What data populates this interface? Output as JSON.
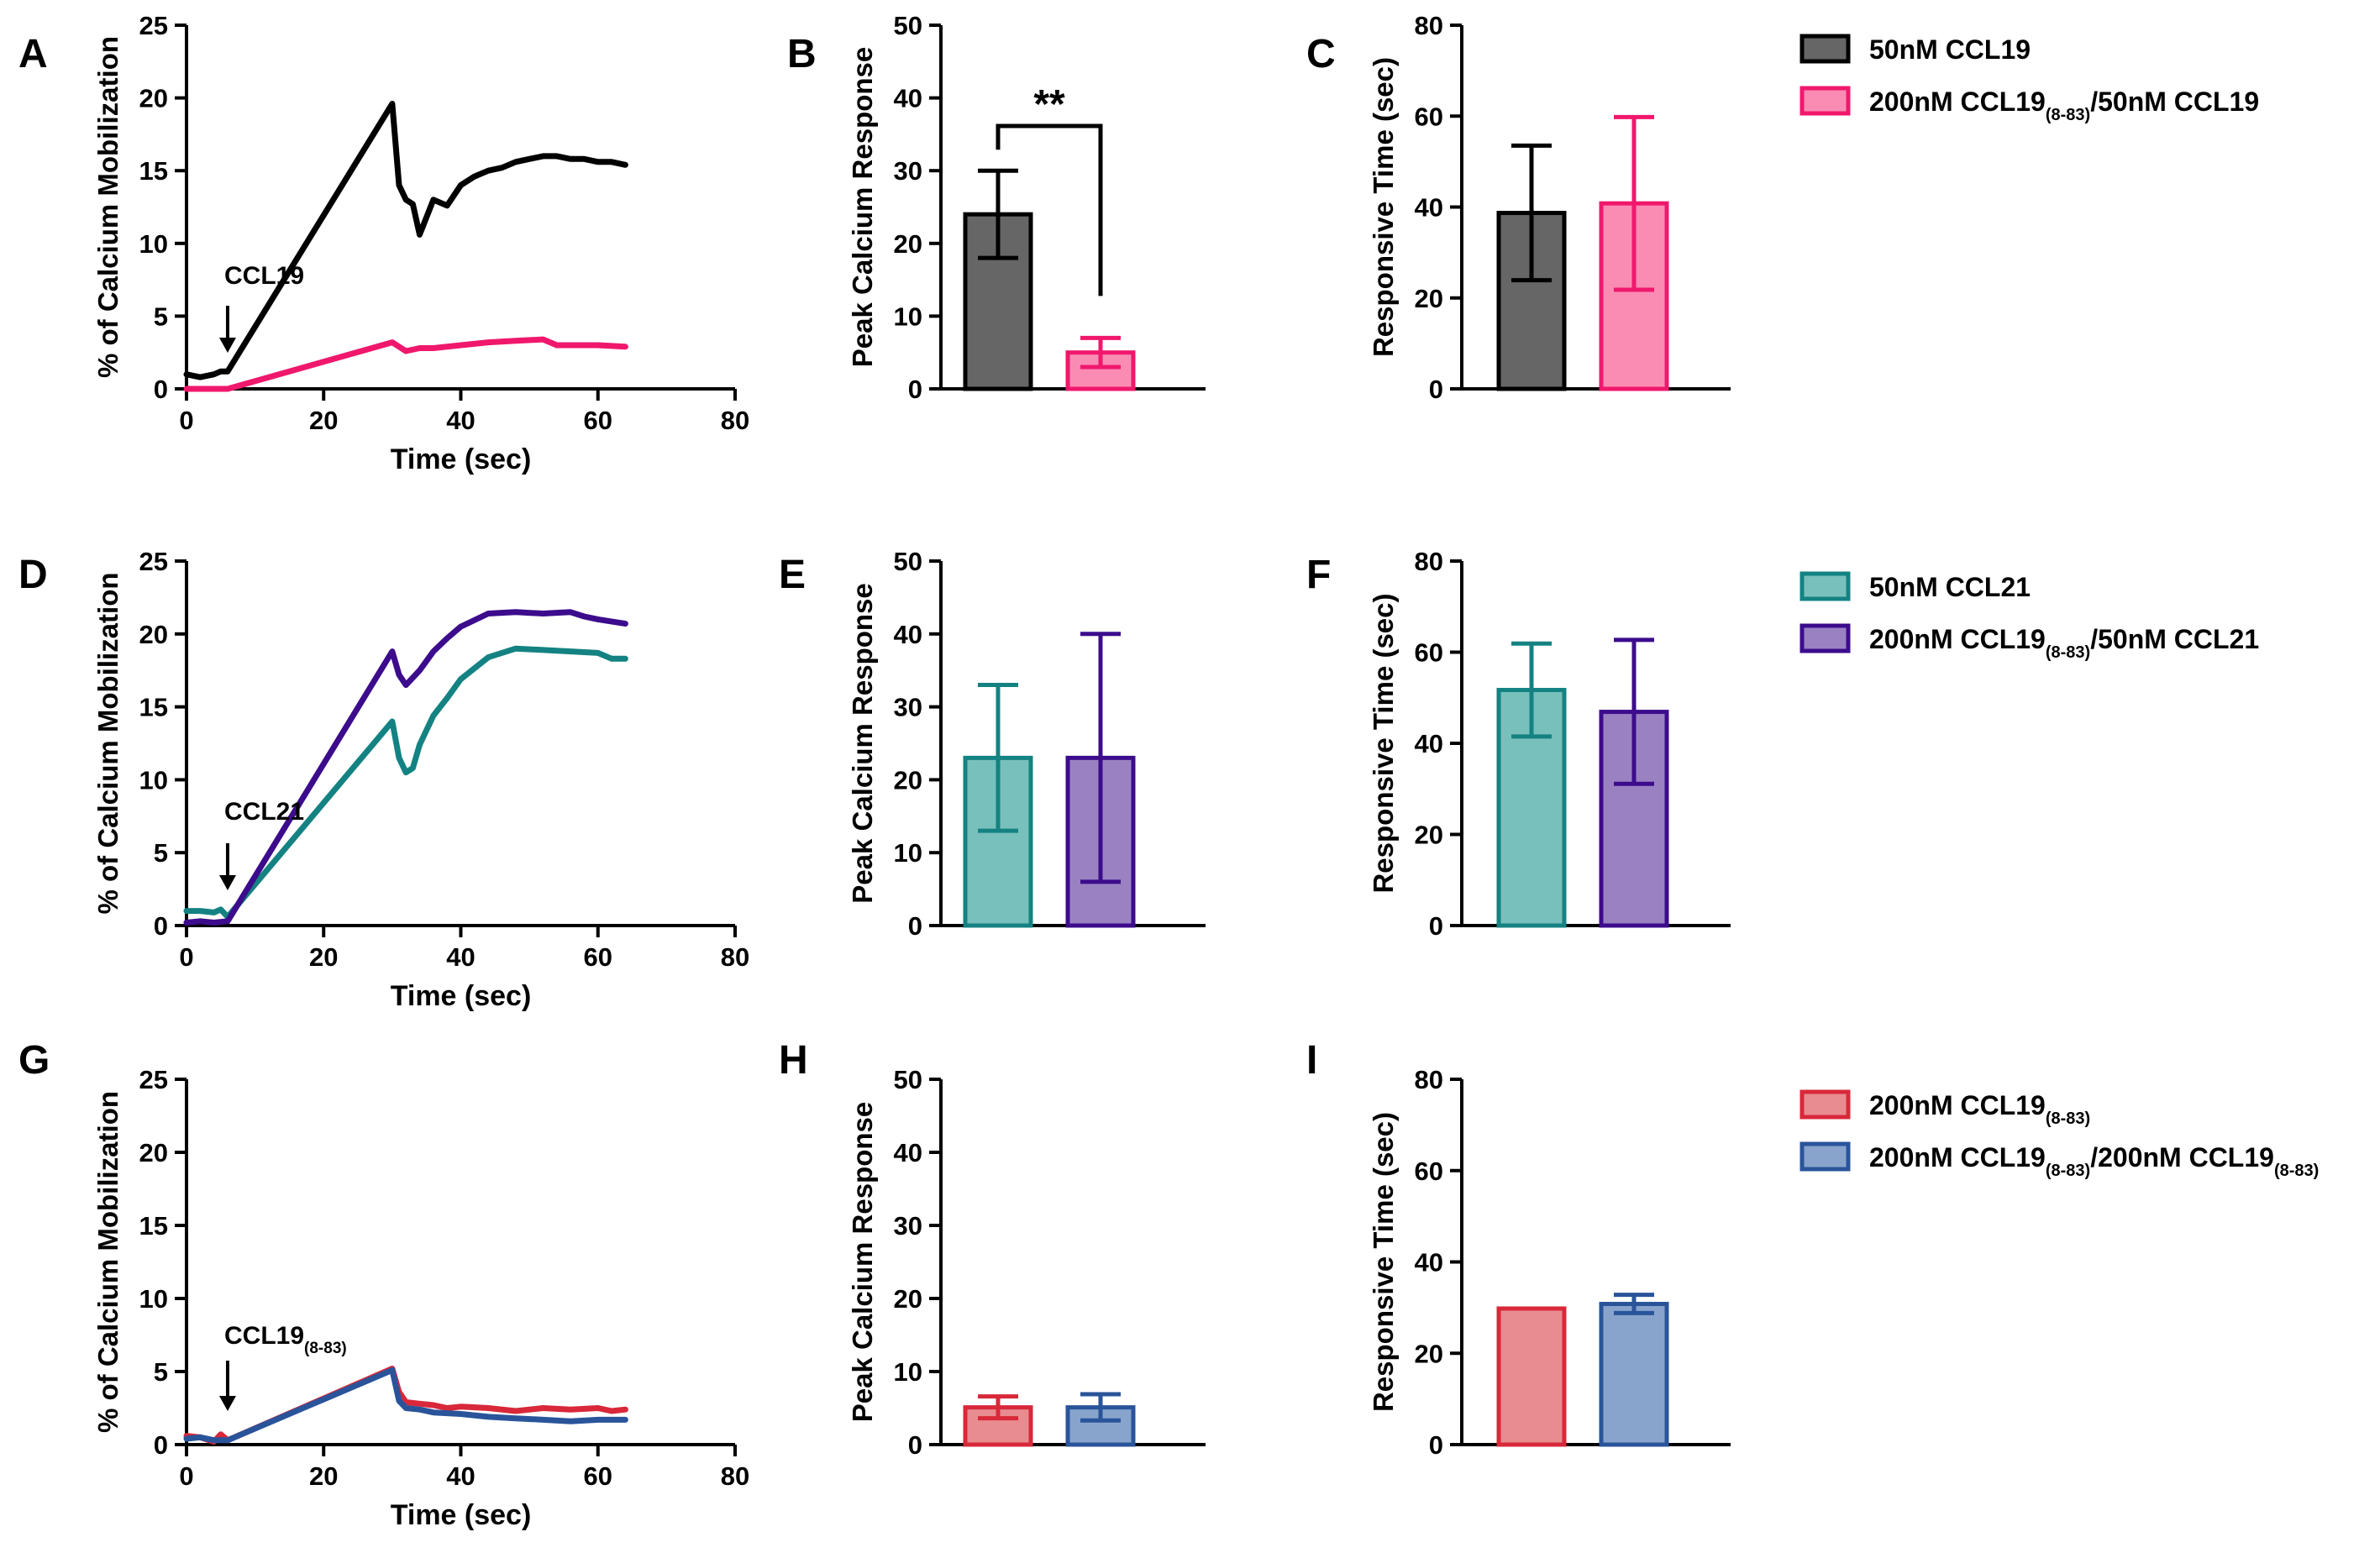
{
  "figure": {
    "colors": {
      "black": "#000000",
      "grey": "#666666",
      "pink_line": "#f0186c",
      "pink_fill": "#fa8cb4",
      "teal_line": "#148282",
      "teal_fill": "#78c0bc",
      "purple_line": "#3c0c8c",
      "purple_fill": "#9a82c2",
      "red_line": "#d8283a",
      "red_fill": "#e88c90",
      "blue_line": "#2a549a",
      "blue_fill": "#88a4cc"
    },
    "legends": [
      {
        "items": [
          {
            "name": "legend-50nm-ccl19",
            "parts": [
              {
                "t": "50nM CCL19",
                "sub": false
              }
            ],
            "fill": "#666666",
            "stroke": "#000000"
          },
          {
            "name": "legend-200nm-ccl19-8-83-50nm-ccl19",
            "parts": [
              {
                "t": "200nM CCL19",
                "sub": false
              },
              {
                "t": "(8-83)",
                "sub": true
              },
              {
                "t": "/50nM CCL19",
                "sub": false
              }
            ],
            "fill": "#fa8cb4",
            "stroke": "#f0186c"
          }
        ]
      },
      {
        "items": [
          {
            "name": "legend-50nm-ccl21",
            "parts": [
              {
                "t": "50nM CCL21",
                "sub": false
              }
            ],
            "fill": "#78c0bc",
            "stroke": "#148282"
          },
          {
            "name": "legend-200nm-ccl19-8-83-50nm-ccl21",
            "parts": [
              {
                "t": "200nM CCL19",
                "sub": false
              },
              {
                "t": "(8-83)",
                "sub": true
              },
              {
                "t": "/50nM CCL21",
                "sub": false
              }
            ],
            "fill": "#9a82c2",
            "stroke": "#3c0c8c"
          }
        ]
      },
      {
        "items": [
          {
            "name": "legend-200nm-ccl19-8-83",
            "parts": [
              {
                "t": "200nM CCL19",
                "sub": false
              },
              {
                "t": "(8-83)",
                "sub": true
              }
            ],
            "fill": "#e88c90",
            "stroke": "#d8283a"
          },
          {
            "name": "legend-200nm-ccl19-8-83-200nm-ccl19-8-83",
            "parts": [
              {
                "t": "200nM CCL19",
                "sub": false
              },
              {
                "t": "(8-83)",
                "sub": true
              },
              {
                "t": "/200nM CCL19",
                "sub": false
              },
              {
                "t": "(8-83)",
                "sub": true
              }
            ],
            "fill": "#88a4cc",
            "stroke": "#2a549a"
          }
        ]
      }
    ]
  },
  "chart_data": [
    {
      "panel": "A",
      "type": "line",
      "xlabel": "Time (sec)",
      "ylabel": "% of Calcium Mobilization",
      "xlim": [
        0,
        80
      ],
      "ylim": [
        0,
        25
      ],
      "xticks": [
        0,
        20,
        40,
        60,
        80
      ],
      "yticks": [
        0,
        5,
        10,
        15,
        20,
        25
      ],
      "annotation": {
        "parts": [
          {
            "t": "CCL19",
            "sub": false
          }
        ],
        "x": 6
      },
      "series": [
        {
          "name": "50nM CCL19",
          "color": "#000000",
          "x": [
            0,
            1,
            2,
            4,
            5,
            6,
            30,
            31,
            32,
            33,
            34,
            36,
            38,
            40,
            42,
            44,
            46,
            48,
            50,
            52,
            54,
            56,
            58,
            60,
            62,
            64
          ],
          "y": [
            1,
            0.9,
            0.8,
            1,
            1.2,
            1.2,
            19.6,
            14,
            13,
            12.7,
            10.6,
            13,
            12.6,
            14,
            14.6,
            15,
            15.2,
            15.6,
            15.8,
            16,
            16,
            15.8,
            15.8,
            15.6,
            15.6,
            15.4
          ]
        },
        {
          "name": "200nM CCL19(8-83)/50nM CCL19",
          "color": "#f0186c",
          "x": [
            0,
            2,
            4,
            6,
            30,
            31,
            32,
            34,
            36,
            40,
            44,
            48,
            52,
            54,
            56,
            60,
            64
          ],
          "y": [
            0,
            0,
            0,
            0,
            3.2,
            2.9,
            2.6,
            2.8,
            2.8,
            3,
            3.2,
            3.3,
            3.4,
            3,
            3,
            3,
            2.9
          ]
        }
      ]
    },
    {
      "panel": "B",
      "type": "bar",
      "categories": [
        "50nM CCL19",
        "200nM CCL19(8-83)/50nM CCL19"
      ],
      "values": [
        24,
        5
      ],
      "errors": [
        6,
        2
      ],
      "ylabel": "Peak Calcium Response",
      "ylim": [
        0,
        50
      ],
      "yticks": [
        0,
        10,
        20,
        30,
        40,
        50
      ],
      "fills": [
        "#666666",
        "#fa8cb4"
      ],
      "strokes": [
        "#000000",
        "#f0186c"
      ],
      "significance": "**"
    },
    {
      "panel": "C",
      "type": "bar",
      "categories": [
        "50nM CCL19",
        "200nM CCL19(8-83)/50nM CCL19"
      ],
      "values": [
        38.7,
        40.8
      ],
      "errors": [
        14.8,
        19
      ],
      "ylabel": "Responsive Time (sec)",
      "ylim": [
        0,
        80
      ],
      "yticks": [
        0,
        20,
        40,
        60,
        80
      ],
      "fills": [
        "#666666",
        "#fa8cb4"
      ],
      "strokes": [
        "#000000",
        "#f0186c"
      ]
    },
    {
      "panel": "D",
      "type": "line",
      "xlabel": "Time (sec)",
      "ylabel": "% of Calcium Mobilization",
      "xlim": [
        0,
        80
      ],
      "ylim": [
        0,
        25
      ],
      "xticks": [
        0,
        20,
        40,
        60,
        80
      ],
      "yticks": [
        0,
        5,
        10,
        15,
        20,
        25
      ],
      "annotation": {
        "parts": [
          {
            "t": "CCL21",
            "sub": false
          }
        ],
        "x": 6
      },
      "series": [
        {
          "name": "50nM CCL21",
          "color": "#148282",
          "x": [
            0,
            2,
            4,
            5,
            6,
            30,
            31,
            32,
            33,
            34,
            36,
            38,
            40,
            44,
            48,
            52,
            56,
            60,
            62,
            64
          ],
          "y": [
            1,
            1,
            0.9,
            1.1,
            0.6,
            14,
            11.5,
            10.5,
            10.8,
            12.4,
            14.4,
            15.6,
            16.9,
            18.4,
            19,
            18.9,
            18.8,
            18.7,
            18.3,
            18.3
          ]
        },
        {
          "name": "200nM CCL19(8-83)/50nM CCL21",
          "color": "#3c0c8c",
          "x": [
            0,
            2,
            4,
            6,
            30,
            31,
            32,
            34,
            36,
            38,
            40,
            44,
            48,
            52,
            56,
            58,
            60,
            64
          ],
          "y": [
            0.2,
            0.3,
            0.2,
            0.3,
            18.8,
            17.2,
            16.5,
            17.5,
            18.8,
            19.7,
            20.5,
            21.4,
            21.5,
            21.4,
            21.5,
            21.2,
            21,
            20.7
          ]
        }
      ]
    },
    {
      "panel": "E",
      "type": "bar",
      "categories": [
        "50nM CCL21",
        "200nM CCL19(8-83)/50nM CCL21"
      ],
      "values": [
        23,
        23
      ],
      "errors": [
        10,
        17
      ],
      "ylabel": "Peak Calcium Response",
      "ylim": [
        0,
        50
      ],
      "yticks": [
        0,
        10,
        20,
        30,
        40,
        50
      ],
      "fills": [
        "#78c0bc",
        "#9a82c2"
      ],
      "strokes": [
        "#148282",
        "#3c0c8c"
      ]
    },
    {
      "panel": "F",
      "type": "bar",
      "categories": [
        "50nM CCL21",
        "200nM CCL19(8-83)/50nM CCL21"
      ],
      "values": [
        51.7,
        46.9
      ],
      "errors": [
        10.2,
        15.8
      ],
      "ylabel": "Responsive Time (sec)",
      "ylim": [
        0,
        80
      ],
      "yticks": [
        0,
        20,
        40,
        60,
        80
      ],
      "fills": [
        "#78c0bc",
        "#9a82c2"
      ],
      "strokes": [
        "#148282",
        "#3c0c8c"
      ]
    },
    {
      "panel": "G",
      "type": "line",
      "xlabel": "Time (sec)",
      "ylabel": "% of Calcium Mobilization",
      "xlim": [
        0,
        80
      ],
      "ylim": [
        0,
        25
      ],
      "xticks": [
        0,
        20,
        40,
        60,
        80
      ],
      "yticks": [
        0,
        5,
        10,
        15,
        20,
        25
      ],
      "annotation": {
        "parts": [
          {
            "t": "CCL19",
            "sub": false
          },
          {
            "t": "(8-83)",
            "sub": true
          }
        ],
        "x": 6
      },
      "series": [
        {
          "name": "200nM CCL19(8-83)",
          "color": "#d8283a",
          "x": [
            0,
            2,
            4,
            5,
            6,
            30,
            31,
            32,
            34,
            36,
            38,
            40,
            44,
            48,
            52,
            56,
            60,
            62,
            64
          ],
          "y": [
            0.6,
            0.5,
            0.2,
            0.7,
            0.3,
            5.2,
            3.6,
            2.9,
            2.8,
            2.7,
            2.5,
            2.6,
            2.5,
            2.3,
            2.5,
            2.4,
            2.5,
            2.3,
            2.4
          ]
        },
        {
          "name": "200nM CCL19(8-83)/200nM CCL19(8-83)",
          "color": "#2a549a",
          "x": [
            0,
            2,
            4,
            6,
            30,
            31,
            32,
            34,
            36,
            40,
            44,
            48,
            52,
            56,
            60,
            64
          ],
          "y": [
            0.4,
            0.5,
            0.3,
            0.3,
            5.1,
            3,
            2.5,
            2.4,
            2.2,
            2.1,
            1.9,
            1.8,
            1.7,
            1.6,
            1.7,
            1.7
          ]
        }
      ]
    },
    {
      "panel": "H",
      "type": "bar",
      "categories": [
        "200nM CCL19(8-83)",
        "200nM CCL19(8-83)/200nM CCL19(8-83)"
      ],
      "values": [
        5.1,
        5.1
      ],
      "errors": [
        1.5,
        1.8
      ],
      "ylabel": "Peak Calcium Response",
      "ylim": [
        0,
        50
      ],
      "yticks": [
        0,
        10,
        20,
        30,
        40,
        50
      ],
      "fills": [
        "#e88c90",
        "#88a4cc"
      ],
      "strokes": [
        "#d8283a",
        "#2a549a"
      ]
    },
    {
      "panel": "I",
      "type": "bar",
      "categories": [
        "200nM CCL19(8-83)",
        "200nM CCL19(8-83)/200nM CCL19(8-83)"
      ],
      "values": [
        29.8,
        30.8
      ],
      "errors": [
        0,
        2
      ],
      "ylabel": "Responsive Time (sec)",
      "ylim": [
        0,
        80
      ],
      "yticks": [
        0,
        20,
        40,
        60,
        80
      ],
      "fills": [
        "#e88c90",
        "#88a4cc"
      ],
      "strokes": [
        "#d8283a",
        "#2a549a"
      ]
    }
  ]
}
